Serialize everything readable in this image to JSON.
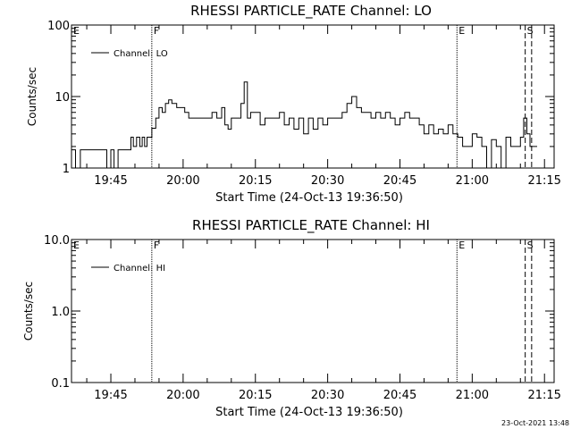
{
  "footer_timestamp": "23-Oct-2021 13:48",
  "chart_data": [
    {
      "type": "line",
      "title": "RHESSI PARTICLE_RATE Channel: LO",
      "xlabel": "Start Time (24-Oct-13 19:36:50)",
      "ylabel": "Counts/sec",
      "yscale": "log",
      "ylim": [
        1,
        100
      ],
      "yticks": [
        1,
        10,
        100
      ],
      "ytick_labels": [
        "1",
        "10",
        "100"
      ],
      "xlim": [
        "19:36:50",
        "21:17:00"
      ],
      "xticks": [
        "19:45",
        "20:00",
        "20:15",
        "20:30",
        "20:45",
        "21:00",
        "21:15"
      ],
      "legend": {
        "location": "top-left",
        "entries": [
          "Channel: LO"
        ]
      },
      "grid": false,
      "markers": [
        {
          "label": "E",
          "time": "19:36:50",
          "style": "solid"
        },
        {
          "label": "F",
          "time": "19:53:30",
          "style": "dotted"
        },
        {
          "label": "E",
          "time": "20:56:50",
          "style": "dotted"
        },
        {
          "label": "S",
          "time": "21:11:00",
          "style": "dashed"
        },
        {
          "label": "",
          "time": "21:12:20",
          "style": "dashed"
        }
      ],
      "series": [
        {
          "name": "Channel: LO",
          "x": [
            "19:36:50",
            "19:37:40",
            "19:38:40",
            "19:40:30",
            "19:42:30",
            "19:43:20",
            "19:44:10",
            "19:45:00",
            "19:45:40",
            "19:46:30",
            "19:47:00",
            "19:47:40",
            "19:48:30",
            "19:49:10",
            "19:49:40",
            "19:50:20",
            "19:51:00",
            "19:51:30",
            "19:52:00",
            "19:52:30",
            "19:53:00",
            "19:53:30",
            "19:54:20",
            "19:55:00",
            "19:55:40",
            "19:56:20",
            "19:57:00",
            "19:57:40",
            "19:58:40",
            "19:59:30",
            "20:00:20",
            "20:01:10",
            "20:02:00",
            "20:03:00",
            "20:04:00",
            "20:05:00",
            "20:06:00",
            "20:07:00",
            "20:08:00",
            "20:08:40",
            "20:09:20",
            "20:10:00",
            "20:10:40",
            "20:11:20",
            "20:12:00",
            "20:12:40",
            "20:13:20",
            "20:14:00",
            "20:15:00",
            "20:16:00",
            "20:17:00",
            "20:18:00",
            "20:19:00",
            "20:20:00",
            "20:21:00",
            "20:22:00",
            "20:23:00",
            "20:24:00",
            "20:25:00",
            "20:26:00",
            "20:27:00",
            "20:28:00",
            "20:29:00",
            "20:30:00",
            "20:31:00",
            "20:32:00",
            "20:33:00",
            "20:34:00",
            "20:35:00",
            "20:36:00",
            "20:37:00",
            "20:38:00",
            "20:39:00",
            "20:40:00",
            "20:41:00",
            "20:42:00",
            "20:43:00",
            "20:44:00",
            "20:45:00",
            "20:46:00",
            "20:47:00",
            "20:48:00",
            "20:49:00",
            "20:50:00",
            "20:51:00",
            "20:52:00",
            "20:53:00",
            "20:54:00",
            "20:55:00",
            "20:56:00",
            "20:57:00",
            "20:58:00",
            "20:59:00",
            "21:00:00",
            "21:01:00",
            "21:02:00",
            "21:03:00",
            "21:04:00",
            "21:05:00",
            "21:06:00",
            "21:07:00",
            "21:08:00",
            "21:09:00",
            "21:10:00",
            "21:10:40",
            "21:11:20",
            "21:12:00"
          ],
          "y": [
            1.8,
            1.0,
            1.8,
            1.8,
            1.8,
            1.8,
            1.0,
            1.8,
            1.0,
            1.8,
            1.8,
            1.8,
            1.8,
            2.7,
            2.0,
            2.7,
            2.0,
            2.7,
            2.0,
            2.7,
            2.7,
            3.6,
            5.0,
            7.0,
            6.0,
            8.0,
            9.0,
            8.0,
            7.0,
            7.0,
            6.0,
            5.0,
            5.0,
            5.0,
            5.0,
            5.0,
            6.0,
            5.0,
            7.0,
            4.0,
            3.5,
            5.0,
            5.0,
            5.0,
            8.0,
            16.0,
            5.0,
            6.0,
            6.0,
            4.0,
            5.0,
            5.0,
            5.0,
            6.0,
            4.0,
            5.0,
            3.5,
            5.0,
            3.0,
            5.0,
            3.5,
            5.0,
            4.0,
            5.0,
            5.0,
            5.0,
            6.0,
            8.0,
            10.0,
            7.0,
            6.0,
            6.0,
            5.0,
            6.0,
            5.0,
            6.0,
            5.0,
            4.0,
            5.0,
            6.0,
            5.0,
            5.0,
            4.0,
            3.0,
            4.0,
            3.0,
            3.5,
            3.0,
            4.0,
            3.0,
            2.7,
            2.0,
            2.0,
            3.0,
            2.7,
            2.0,
            1.0,
            2.5,
            2.0,
            1.0,
            2.7,
            2.0,
            2.0,
            2.7,
            5.0,
            3.0,
            2.0
          ]
        }
      ]
    },
    {
      "type": "line",
      "title": "RHESSI PARTICLE_RATE Channel: HI",
      "xlabel": "Start Time (24-Oct-13 19:36:50)",
      "ylabel": "Counts/sec",
      "yscale": "log",
      "ylim": [
        0.1,
        10
      ],
      "yticks": [
        0.1,
        1.0,
        10.0
      ],
      "ytick_labels": [
        "0.1",
        "1.0",
        "10.0"
      ],
      "xlim": [
        "19:36:50",
        "21:17:00"
      ],
      "xticks": [
        "19:45",
        "20:00",
        "20:15",
        "20:30",
        "20:45",
        "21:00",
        "21:15"
      ],
      "legend": {
        "location": "top-left",
        "entries": [
          "Channel: HI"
        ]
      },
      "grid": false,
      "markers": [
        {
          "label": "E",
          "time": "19:36:50",
          "style": "solid"
        },
        {
          "label": "F",
          "time": "19:53:30",
          "style": "dotted"
        },
        {
          "label": "E",
          "time": "20:56:50",
          "style": "dotted"
        },
        {
          "label": "S",
          "time": "21:11:00",
          "style": "dashed"
        },
        {
          "label": "",
          "time": "21:12:20",
          "style": "dashed"
        }
      ],
      "series": [
        {
          "name": "Channel: HI",
          "x": [],
          "y": []
        }
      ]
    }
  ]
}
